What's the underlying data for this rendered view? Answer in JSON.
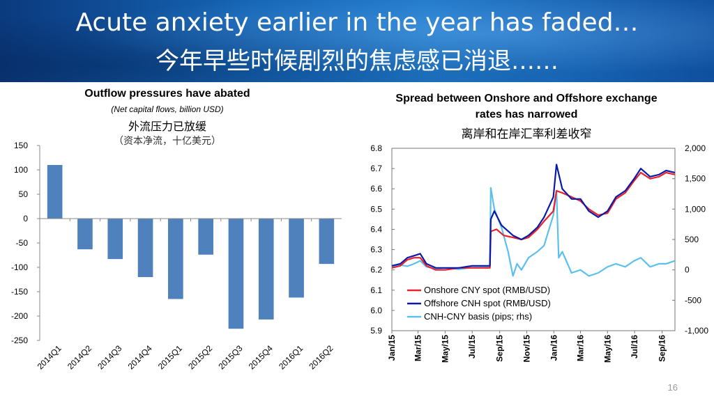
{
  "slide": {
    "title_en": "Acute anxiety earlier in the year has faded…",
    "title_zh": "今年早些时候剧烈的焦虑感已消退……",
    "page_number": "16"
  },
  "chart_data": [
    {
      "type": "bar",
      "title": "Outflow pressures have abated",
      "subtitle": "(Net capital flows, billion USD)",
      "title_zh": "外流压力已放缓",
      "subtitle_zh": "（资本净流，十亿美元）",
      "categories": [
        "2014Q1",
        "2014Q2",
        "2014Q3",
        "2014Q4",
        "2015Q1",
        "2015Q2",
        "2015Q3",
        "2015Q4",
        "2016Q1",
        "2016Q2"
      ],
      "values": [
        110,
        -63,
        -83,
        -120,
        -165,
        -74,
        -226,
        -207,
        -162,
        -93
      ],
      "ylim": [
        -250,
        150
      ],
      "yticks": [
        "150",
        "100",
        "50",
        "0",
        "-50",
        "-100",
        "-150",
        "-200",
        "-250"
      ],
      "grid": false,
      "bar_color": "#4f81bd"
    },
    {
      "type": "line",
      "title": "Spread between Onshore and Offshore exchange rates has narrowed",
      "title_zh": "离岸和在岸汇率利差收窄",
      "xlim": [
        "2015-01-01",
        "2016-09-30"
      ],
      "x_ticks": [
        "Jan/15",
        "Mar/15",
        "May/15",
        "Jul/15",
        "Sep/15",
        "Nov/15",
        "Jan/16",
        "Mar/16",
        "May/16",
        "Jul/16",
        "Sep/16"
      ],
      "y_left": {
        "range": [
          5.9,
          6.8
        ],
        "ticks": [
          "6.8",
          "6.7",
          "6.6",
          "6.5",
          "6.4",
          "6.3",
          "6.2",
          "6.1",
          "6.0",
          "5.9"
        ]
      },
      "y_right": {
        "range": [
          -1000,
          2000
        ],
        "ticks": [
          "2,000",
          "1,500",
          "1,000",
          "500",
          "0",
          "-500",
          "-1,000"
        ]
      },
      "legend_position": "bottom-left",
      "grid": false,
      "series": [
        {
          "name": "Onshore CNY spot (RMB/USD)",
          "axis": "left",
          "color": "#e8212b",
          "points": [
            [
              "2015-01-01",
              6.21
            ],
            [
              "2015-01-20",
              6.22
            ],
            [
              "2015-02-05",
              6.25
            ],
            [
              "2015-02-20",
              6.26
            ],
            [
              "2015-03-06",
              6.26
            ],
            [
              "2015-03-20",
              6.22
            ],
            [
              "2015-04-10",
              6.2
            ],
            [
              "2015-05-01",
              6.2
            ],
            [
              "2015-06-01",
              6.21
            ],
            [
              "2015-07-01",
              6.21
            ],
            [
              "2015-08-10",
              6.21
            ],
            [
              "2015-08-12",
              6.39
            ],
            [
              "2015-08-25",
              6.4
            ],
            [
              "2015-09-10",
              6.37
            ],
            [
              "2015-10-01",
              6.36
            ],
            [
              "2015-10-20",
              6.35
            ],
            [
              "2015-11-05",
              6.36
            ],
            [
              "2015-11-25",
              6.4
            ],
            [
              "2015-12-10",
              6.44
            ],
            [
              "2015-12-31",
              6.49
            ],
            [
              "2016-01-07",
              6.59
            ],
            [
              "2016-01-20",
              6.58
            ],
            [
              "2016-02-10",
              6.56
            ],
            [
              "2016-03-01",
              6.54
            ],
            [
              "2016-03-20",
              6.5
            ],
            [
              "2016-04-10",
              6.47
            ],
            [
              "2016-05-01",
              6.48
            ],
            [
              "2016-05-20",
              6.55
            ],
            [
              "2016-06-10",
              6.58
            ],
            [
              "2016-06-30",
              6.64
            ],
            [
              "2016-07-15",
              6.68
            ],
            [
              "2016-08-05",
              6.65
            ],
            [
              "2016-08-25",
              6.66
            ],
            [
              "2016-09-10",
              6.68
            ],
            [
              "2016-09-30",
              6.67
            ]
          ]
        },
        {
          "name": "Offshore CNH spot (RMB/USD)",
          "axis": "left",
          "color": "#0a1aa8",
          "points": [
            [
              "2015-01-01",
              6.22
            ],
            [
              "2015-01-20",
              6.23
            ],
            [
              "2015-02-05",
              6.26
            ],
            [
              "2015-02-20",
              6.27
            ],
            [
              "2015-03-06",
              6.28
            ],
            [
              "2015-03-20",
              6.23
            ],
            [
              "2015-04-10",
              6.21
            ],
            [
              "2015-05-01",
              6.21
            ],
            [
              "2015-06-01",
              6.21
            ],
            [
              "2015-07-01",
              6.22
            ],
            [
              "2015-08-10",
              6.22
            ],
            [
              "2015-08-12",
              6.45
            ],
            [
              "2015-08-20",
              6.49
            ],
            [
              "2015-09-05",
              6.42
            ],
            [
              "2015-10-01",
              6.37
            ],
            [
              "2015-10-20",
              6.35
            ],
            [
              "2015-11-05",
              6.37
            ],
            [
              "2015-11-25",
              6.41
            ],
            [
              "2015-12-10",
              6.46
            ],
            [
              "2015-12-31",
              6.56
            ],
            [
              "2016-01-07",
              6.72
            ],
            [
              "2016-01-20",
              6.6
            ],
            [
              "2016-02-10",
              6.55
            ],
            [
              "2016-03-01",
              6.55
            ],
            [
              "2016-03-20",
              6.49
            ],
            [
              "2016-04-10",
              6.46
            ],
            [
              "2016-05-01",
              6.49
            ],
            [
              "2016-05-20",
              6.56
            ],
            [
              "2016-06-10",
              6.59
            ],
            [
              "2016-06-30",
              6.65
            ],
            [
              "2016-07-15",
              6.7
            ],
            [
              "2016-08-05",
              6.66
            ],
            [
              "2016-08-25",
              6.67
            ],
            [
              "2016-09-10",
              6.69
            ],
            [
              "2016-09-30",
              6.68
            ]
          ]
        },
        {
          "name": "CNH-CNY basis (pips; rhs)",
          "axis": "right",
          "color": "#5bc0f0",
          "points": [
            [
              "2015-01-01",
              50
            ],
            [
              "2015-01-20",
              80
            ],
            [
              "2015-02-05",
              60
            ],
            [
              "2015-02-20",
              100
            ],
            [
              "2015-03-06",
              150
            ],
            [
              "2015-03-20",
              50
            ],
            [
              "2015-04-10",
              20
            ],
            [
              "2015-05-01",
              30
            ],
            [
              "2015-06-01",
              10
            ],
            [
              "2015-07-01",
              40
            ],
            [
              "2015-08-10",
              50
            ],
            [
              "2015-08-12",
              1350
            ],
            [
              "2015-08-20",
              1000
            ],
            [
              "2015-09-05",
              700
            ],
            [
              "2015-09-20",
              300
            ],
            [
              "2015-10-01",
              -100
            ],
            [
              "2015-10-10",
              100
            ],
            [
              "2015-10-20",
              0
            ],
            [
              "2015-11-05",
              200
            ],
            [
              "2015-11-25",
              300
            ],
            [
              "2015-12-10",
              400
            ],
            [
              "2015-12-31",
              900
            ],
            [
              "2016-01-07",
              1300
            ],
            [
              "2016-01-12",
              200
            ],
            [
              "2016-01-20",
              300
            ],
            [
              "2016-02-10",
              -50
            ],
            [
              "2016-03-01",
              0
            ],
            [
              "2016-03-20",
              -100
            ],
            [
              "2016-04-10",
              -50
            ],
            [
              "2016-05-01",
              50
            ],
            [
              "2016-05-20",
              100
            ],
            [
              "2016-06-10",
              50
            ],
            [
              "2016-06-30",
              150
            ],
            [
              "2016-07-15",
              200
            ],
            [
              "2016-08-05",
              50
            ],
            [
              "2016-08-25",
              100
            ],
            [
              "2016-09-10",
              100
            ],
            [
              "2016-09-30",
              150
            ]
          ]
        }
      ]
    }
  ]
}
